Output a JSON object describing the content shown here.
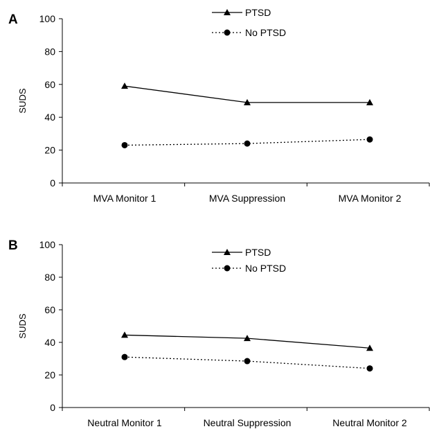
{
  "chart_data": [
    {
      "type": "line",
      "panel_label": "A",
      "categories": [
        "MVA Monitor 1",
        "MVA Suppression",
        "MVA Monitor 2"
      ],
      "ylabel": "SUDS",
      "ylim": [
        0,
        100
      ],
      "yticks": [
        "0",
        "20",
        "40",
        "60",
        "80",
        "100"
      ],
      "legend_position": "top-center",
      "series": [
        {
          "name": "PTSD",
          "values": [
            59,
            49,
            49
          ],
          "line_style": "solid",
          "marker": "triangle",
          "color": "#000000"
        },
        {
          "name": "No PTSD",
          "values": [
            23,
            24,
            26.5
          ],
          "line_style": "dotted",
          "marker": "circle",
          "color": "#000000"
        }
      ]
    },
    {
      "type": "line",
      "panel_label": "B",
      "categories": [
        "Neutral Monitor 1",
        "Neutral Suppression",
        "Neutral Monitor 2"
      ],
      "ylabel": "SUDS",
      "ylim": [
        0,
        100
      ],
      "yticks": [
        "0",
        "20",
        "40",
        "60",
        "80",
        "100"
      ],
      "legend_position": "top-center",
      "series": [
        {
          "name": "PTSD",
          "values": [
            44.5,
            42.5,
            36.5
          ],
          "line_style": "solid",
          "marker": "triangle",
          "color": "#000000"
        },
        {
          "name": "No PTSD",
          "values": [
            31,
            28.5,
            24
          ],
          "line_style": "dotted",
          "marker": "circle",
          "color": "#000000"
        }
      ]
    }
  ]
}
